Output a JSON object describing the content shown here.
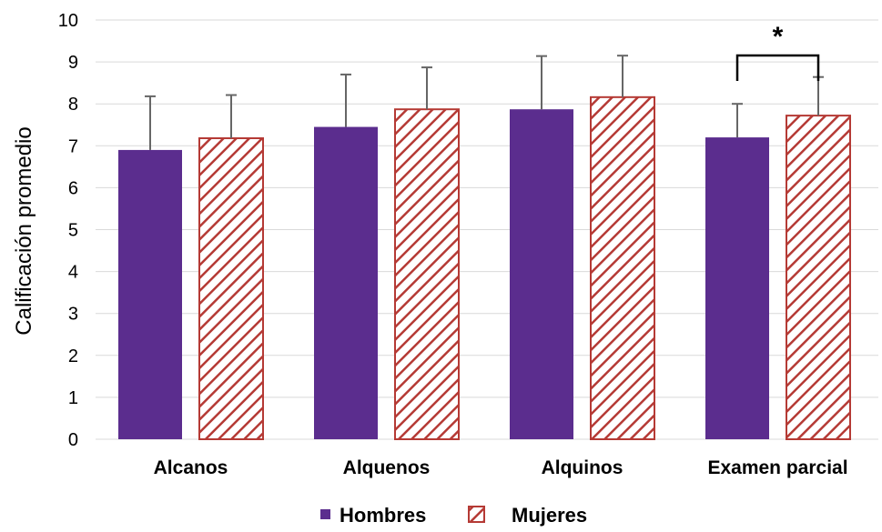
{
  "chart_data": {
    "type": "bar",
    "ylabel": "Calificación promedio",
    "xlabel": "",
    "ylim": [
      0,
      10
    ],
    "yticks": [
      "0",
      "1",
      "2",
      "3",
      "4",
      "5",
      "6",
      "7",
      "8",
      "9",
      "10"
    ],
    "categories": [
      "Alcanos",
      "Alquenos",
      "Alquinos",
      "Examen parcial"
    ],
    "series": [
      {
        "name": "Hombres",
        "values": [
          6.9,
          7.45,
          7.87,
          7.2
        ],
        "error": [
          1.28,
          1.25,
          1.27,
          0.8
        ],
        "color": "#5b2d8e",
        "pattern": "solid"
      },
      {
        "name": "Mujeres",
        "values": [
          7.18,
          7.87,
          8.16,
          7.72
        ],
        "error": [
          1.03,
          1.0,
          0.99,
          0.92
        ],
        "color": "#b53a35",
        "pattern": "hatch"
      }
    ],
    "grid": true,
    "legend": "bottom",
    "annotation": {
      "text": "*",
      "category": "Examen parcial"
    }
  }
}
